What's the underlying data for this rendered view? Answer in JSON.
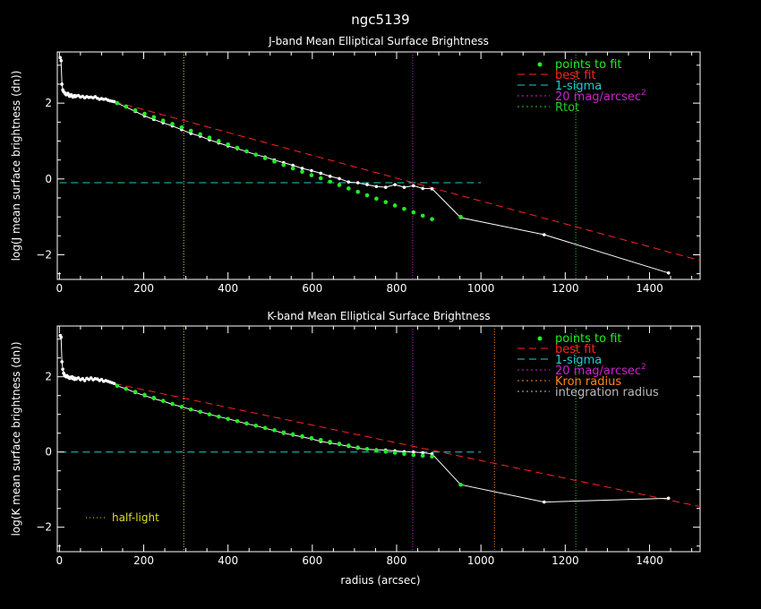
{
  "title": "ngc5139",
  "xlabel": "radius (arcsec)",
  "colors": {
    "background": "#000000",
    "frame": "#ffffff",
    "points": "#22ee22",
    "best_fit": "#ff2222",
    "sigma": "#22cccc",
    "mag20": "#cc22cc",
    "rtot": "#22cc22",
    "kron": "#ff8811",
    "integration": "#bbbbbb",
    "half_light": "#dddd22",
    "profile": "#ffffff"
  },
  "chart_data": [
    {
      "type": "line",
      "title": "J-band Mean Elliptical Surface Brightness",
      "ylabel": "log(J mean surface brightness (dn))",
      "xlim": [
        -5,
        1520
      ],
      "ylim": [
        -2.65,
        3.35
      ],
      "xticks": [
        0,
        200,
        400,
        600,
        800,
        1000,
        1200,
        1400
      ],
      "yticks": [
        -2,
        0,
        2
      ],
      "legend_placement": "top-right",
      "legend": [
        {
          "label": "points to fit",
          "style": "dot",
          "color": "#22ee22"
        },
        {
          "label": "best fit",
          "style": "dash",
          "color": "#ff2222"
        },
        {
          "label": "1-sigma",
          "style": "dash",
          "color": "#22cccc"
        },
        {
          "label": "20 mag/arcsec",
          "sup": "2",
          "style": "dot-line",
          "color": "#cc22cc"
        },
        {
          "label": "Rtot",
          "style": "dot-line",
          "color": "#22cc22"
        }
      ],
      "profile": {
        "x": [
          2,
          4,
          6,
          8,
          10,
          12,
          14,
          16,
          18,
          20,
          22,
          24,
          26,
          28,
          30,
          32,
          34,
          36,
          38,
          40,
          45,
          50,
          55,
          60,
          65,
          70,
          75,
          80,
          85,
          90,
          95,
          100,
          105,
          110,
          115,
          120,
          125,
          130,
          137,
          158,
          180,
          202,
          224,
          246,
          268,
          290,
          312,
          334,
          356,
          378,
          400,
          422,
          444,
          466,
          488,
          510,
          532,
          554,
          576,
          598,
          620,
          642,
          664,
          686,
          708,
          730,
          752,
          774,
          796,
          818,
          840,
          862,
          884,
          952,
          1150,
          1445
        ],
        "y": [
          3.2,
          3.12,
          2.5,
          2.35,
          2.3,
          2.28,
          2.25,
          2.22,
          2.24,
          2.26,
          2.22,
          2.18,
          2.2,
          2.22,
          2.19,
          2.16,
          2.18,
          2.2,
          2.17,
          2.19,
          2.2,
          2.16,
          2.18,
          2.14,
          2.17,
          2.15,
          2.16,
          2.14,
          2.17,
          2.13,
          2.1,
          2.12,
          2.1,
          2.11,
          2.08,
          2.06,
          2.05,
          2.04,
          2.0,
          1.9,
          1.78,
          1.66,
          1.57,
          1.48,
          1.4,
          1.3,
          1.2,
          1.13,
          1.03,
          0.95,
          0.87,
          0.8,
          0.72,
          0.64,
          0.58,
          0.5,
          0.43,
          0.36,
          0.28,
          0.22,
          0.15,
          0.07,
          0.01,
          -0.08,
          -0.1,
          -0.15,
          -0.2,
          -0.22,
          -0.15,
          -0.22,
          -0.18,
          -0.25,
          -0.26,
          -1.02,
          -1.47,
          -2.48
        ]
      },
      "fit_points": {
        "x": [
          137,
          158,
          180,
          202,
          224,
          246,
          268,
          290,
          312,
          334,
          356,
          378,
          400,
          422,
          444,
          466,
          488,
          510,
          532,
          554,
          576,
          598,
          620,
          642,
          664,
          686,
          708,
          730,
          752,
          774,
          796,
          818,
          840,
          862,
          884,
          952
        ],
        "y": [
          2.0,
          1.91,
          1.81,
          1.72,
          1.63,
          1.54,
          1.45,
          1.36,
          1.27,
          1.18,
          1.09,
          1.0,
          0.91,
          0.82,
          0.73,
          0.64,
          0.55,
          0.46,
          0.37,
          0.28,
          0.19,
          0.1,
          0.02,
          -0.07,
          -0.16,
          -0.25,
          -0.34,
          -0.43,
          -0.52,
          -0.61,
          -0.7,
          -0.79,
          -0.88,
          -0.97,
          -1.06,
          -1.0
        ]
      },
      "best_fit": {
        "x": [
          130,
          1520
        ],
        "y": [
          2.04,
          -2.15
        ]
      },
      "sigma_level": {
        "y": -0.1,
        "x": [
          0,
          1000
        ]
      },
      "vlines": [
        {
          "x": 295,
          "color": "#dddd22"
        },
        {
          "x": 838,
          "color": "#cc22cc"
        },
        {
          "x": 1225,
          "color": "#22cc22"
        }
      ]
    },
    {
      "type": "line",
      "title": "K-band Mean Elliptical Surface Brightness",
      "ylabel": "log(K mean surface brightness (dn))",
      "xlim": [
        -5,
        1520
      ],
      "ylim": [
        -2.65,
        3.35
      ],
      "xticks": [
        0,
        200,
        400,
        600,
        800,
        1000,
        1200,
        1400
      ],
      "yticks": [
        -2,
        0,
        2
      ],
      "legend_placement": "top-right",
      "legend": [
        {
          "label": "points to fit",
          "style": "dot",
          "color": "#22ee22"
        },
        {
          "label": "best fit",
          "style": "dash",
          "color": "#ff2222"
        },
        {
          "label": "1-sigma",
          "style": "dash",
          "color": "#22cccc"
        },
        {
          "label": "20 mag/arcsec",
          "sup": "2",
          "style": "dot-line",
          "color": "#cc22cc"
        },
        {
          "label": "Kron radius",
          "style": "dot-line",
          "color": "#ff8811"
        },
        {
          "label": "integration radius",
          "style": "dot-line",
          "color": "#bbbbbb"
        }
      ],
      "annotation": {
        "label": "half-light",
        "color": "#dddd22",
        "location": "bottom-left"
      },
      "profile": {
        "x": [
          2,
          4,
          6,
          8,
          10,
          12,
          14,
          16,
          18,
          20,
          22,
          24,
          26,
          28,
          30,
          32,
          34,
          36,
          38,
          40,
          45,
          50,
          55,
          60,
          65,
          70,
          75,
          80,
          85,
          90,
          95,
          100,
          105,
          110,
          115,
          120,
          125,
          130,
          137,
          158,
          180,
          202,
          224,
          246,
          268,
          290,
          312,
          334,
          356,
          378,
          400,
          422,
          444,
          466,
          488,
          510,
          532,
          554,
          576,
          598,
          620,
          642,
          664,
          686,
          708,
          730,
          752,
          774,
          796,
          818,
          840,
          862,
          884,
          952,
          1150,
          1445
        ],
        "y": [
          3.1,
          3.05,
          2.4,
          2.2,
          2.1,
          2.05,
          2.02,
          2.0,
          2.03,
          2.0,
          1.98,
          1.96,
          1.99,
          1.97,
          2.0,
          1.95,
          1.97,
          1.93,
          1.96,
          1.94,
          1.97,
          1.92,
          1.95,
          1.9,
          1.96,
          1.93,
          1.97,
          1.92,
          1.95,
          1.94,
          1.9,
          1.93,
          1.88,
          1.9,
          1.88,
          1.86,
          1.84,
          1.82,
          1.76,
          1.68,
          1.58,
          1.5,
          1.42,
          1.35,
          1.27,
          1.2,
          1.13,
          1.07,
          1.0,
          0.94,
          0.88,
          0.82,
          0.75,
          0.7,
          0.63,
          0.57,
          0.5,
          0.45,
          0.4,
          0.35,
          0.28,
          0.24,
          0.2,
          0.15,
          0.1,
          0.07,
          0.06,
          0.05,
          0.03,
          0.01,
          0.0,
          -0.02,
          -0.05,
          -0.87,
          -1.33,
          -1.23
        ]
      },
      "fit_points": {
        "x": [
          137,
          158,
          180,
          202,
          224,
          246,
          268,
          290,
          312,
          334,
          356,
          378,
          400,
          422,
          444,
          466,
          488,
          510,
          532,
          554,
          576,
          598,
          620,
          642,
          664,
          686,
          708,
          730,
          752,
          774,
          796,
          818,
          840,
          862,
          884,
          952
        ],
        "y": [
          1.76,
          1.68,
          1.6,
          1.52,
          1.44,
          1.36,
          1.28,
          1.2,
          1.13,
          1.07,
          1.0,
          0.94,
          0.88,
          0.82,
          0.76,
          0.7,
          0.64,
          0.58,
          0.52,
          0.47,
          0.42,
          0.37,
          0.32,
          0.27,
          0.22,
          0.17,
          0.12,
          0.08,
          0.04,
          0.01,
          -0.02,
          -0.05,
          -0.08,
          -0.1,
          -0.12,
          -0.87
        ]
      },
      "best_fit": {
        "x": [
          130,
          1520
        ],
        "y": [
          1.82,
          -1.45
        ]
      },
      "sigma_level": {
        "y": 0.0,
        "x": [
          0,
          1000
        ]
      },
      "vlines": [
        {
          "x": 295,
          "color": "#dddd22"
        },
        {
          "x": 838,
          "color": "#cc22cc"
        },
        {
          "x": 1032,
          "color": "#ff8811"
        },
        {
          "x": 1225,
          "color": "#22cc22"
        }
      ]
    }
  ]
}
